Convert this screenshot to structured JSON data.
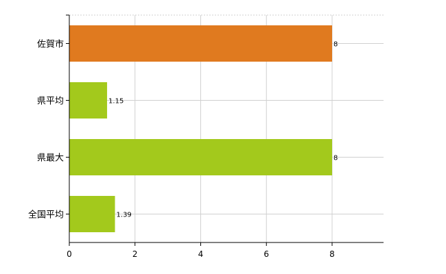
{
  "chart_data": {
    "type": "bar",
    "orientation": "horizontal",
    "categories": [
      "佐賀市",
      "県平均",
      "県最大",
      "全国平均"
    ],
    "values": [
      8,
      1.15,
      8,
      1.39
    ],
    "value_labels": [
      "8",
      "1.15",
      "8",
      "1.39"
    ],
    "bar_colors": [
      "#e07a1f",
      "#a3c91c",
      "#a3c91c",
      "#a3c91c"
    ],
    "xticks": [
      "0",
      "2",
      "4",
      "6",
      "8"
    ],
    "xlim": [
      0,
      9.6
    ],
    "grid": true,
    "gridline_color": "#d0d0d0",
    "title": "",
    "xlabel": "",
    "ylabel": ""
  }
}
